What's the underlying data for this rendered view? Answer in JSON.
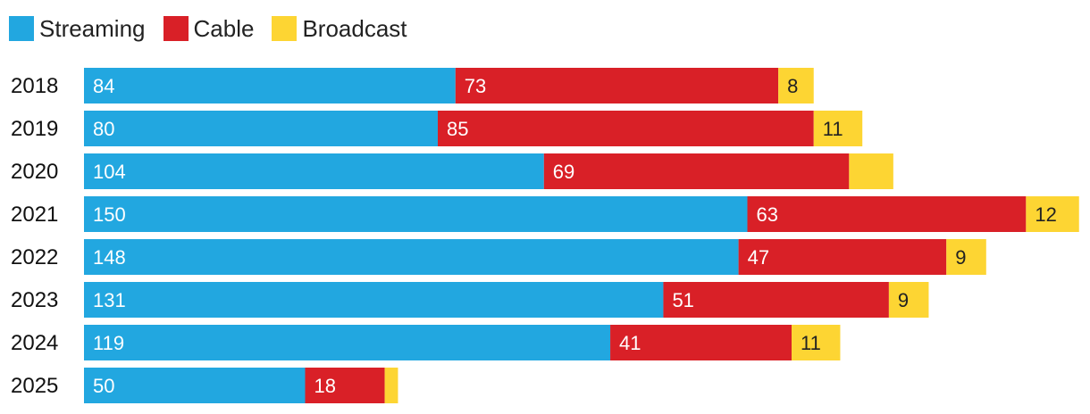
{
  "legend": {
    "streaming": "Streaming",
    "cable": "Cable",
    "broadcast": "Broadcast"
  },
  "colors": {
    "streaming": "#22a7e0",
    "cable": "#d92027",
    "broadcast": "#fdd533",
    "streaming_text": "#ffffff",
    "cable_text": "#ffffff",
    "broadcast_text": "#222222"
  },
  "chart_data": {
    "type": "bar",
    "orientation": "horizontal",
    "stacked": true,
    "title": "",
    "xlabel": "",
    "ylabel": "",
    "legend_position": "top-left",
    "categories": [
      "2018",
      "2019",
      "2020",
      "2021",
      "2022",
      "2023",
      "2024",
      "2025"
    ],
    "series": [
      {
        "name": "Streaming",
        "key": "streaming",
        "values": [
          84,
          80,
          104,
          150,
          148,
          131,
          119,
          50
        ],
        "labels": [
          "84",
          "80",
          "104",
          "150",
          "148",
          "131",
          "119",
          "50"
        ]
      },
      {
        "name": "Cable",
        "key": "cable",
        "values": [
          73,
          85,
          69,
          63,
          47,
          51,
          41,
          18
        ],
        "labels": [
          "73",
          "85",
          "69",
          "63",
          "47",
          "51",
          "41",
          "18"
        ]
      },
      {
        "name": "Broadcast",
        "key": "broadcast",
        "values": [
          8,
          11,
          10,
          12,
          9,
          9,
          11,
          3
        ],
        "labels": [
          "8",
          "11",
          "",
          "12",
          "9",
          "9",
          "11",
          ""
        ]
      }
    ],
    "xlim": [
      0,
      225
    ]
  }
}
